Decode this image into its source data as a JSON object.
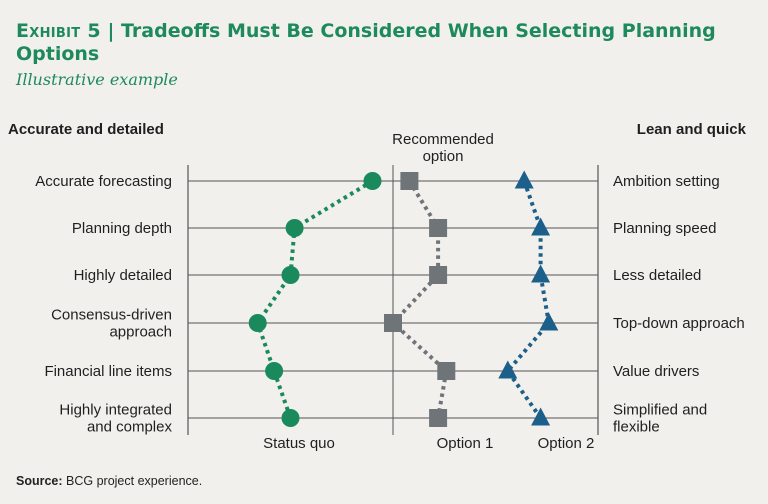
{
  "header": {
    "exhibit_label": "Exhibit 5",
    "separator": " | ",
    "title": "Tradeoffs Must Be Considered When Selecting Planning Options",
    "subtitle": "Illustrative example"
  },
  "source": {
    "label": "Source:",
    "text": " BCG project experience."
  },
  "colors": {
    "green": "#1a8a5c",
    "gray": "#6f7479",
    "blue": "#1c5f8a",
    "grid": "#555555"
  },
  "chart_data": {
    "type": "line",
    "left_heading": "Accurate and detailed",
    "right_heading": "Lean and quick",
    "recommended_label": "Recommended option",
    "left_labels": [
      [
        "Accurate forecasting"
      ],
      [
        "Planning depth"
      ],
      [
        "Highly detailed"
      ],
      [
        "Consensus-driven",
        "approach"
      ],
      [
        "Financial line items"
      ],
      [
        "Highly integrated",
        "and complex"
      ]
    ],
    "right_labels": [
      [
        "Ambition setting"
      ],
      [
        "Planning speed"
      ],
      [
        "Less detailed"
      ],
      [
        "Top-down approach"
      ],
      [
        "Value drivers"
      ],
      [
        "Simplified and",
        "flexible"
      ]
    ],
    "series": [
      {
        "name": "Status quo",
        "marker": "circle",
        "color": "#1a8a5c",
        "values": [
          0.45,
          0.26,
          0.25,
          0.17,
          0.21,
          0.25
        ]
      },
      {
        "name": "Option 1",
        "marker": "square",
        "color": "#6f7479",
        "values": [
          0.54,
          0.61,
          0.61,
          0.5,
          0.63,
          0.61
        ]
      },
      {
        "name": "Option 2",
        "marker": "triangle",
        "color": "#1c5f8a",
        "values": [
          0.82,
          0.86,
          0.86,
          0.88,
          0.78,
          0.86
        ]
      }
    ]
  }
}
